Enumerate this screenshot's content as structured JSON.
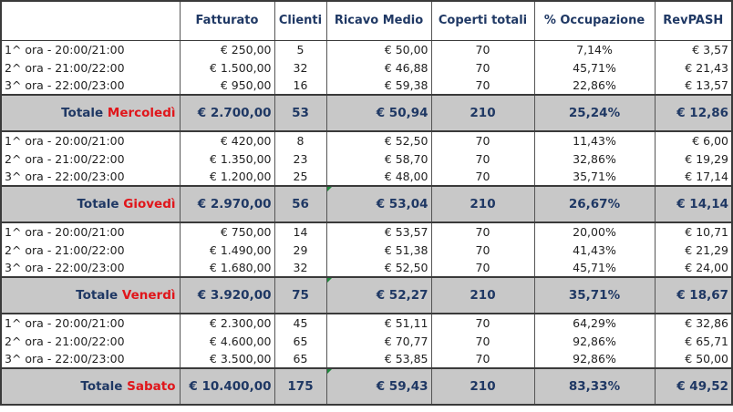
{
  "headers": {
    "col0": "",
    "fatturato": "Fatturato",
    "clienti": "Clienti",
    "ricavo_medio": "Ricavo Medio",
    "coperti_totali": "Coperti totali",
    "occupazione": "% Occupazione",
    "revpash": "RevPASH"
  },
  "groups": [
    {
      "rows": [
        {
          "label": "1^ ora - 20:00/21:00",
          "fatturato": "€ 250,00",
          "clienti": "5",
          "ricavo": "€ 50,00",
          "coperti": "70",
          "occ": "7,14%",
          "revpash": "€ 3,57"
        },
        {
          "label": "2^ ora - 21:00/22:00",
          "fatturato": "€ 1.500,00",
          "clienti": "32",
          "ricavo": "€ 46,88",
          "coperti": "70",
          "occ": "45,71%",
          "revpash": "€ 21,43"
        },
        {
          "label": "3^ ora - 22:00/23:00",
          "fatturato": "€ 950,00",
          "clienti": "16",
          "ricavo": "€ 59,38",
          "coperti": "70",
          "occ": "22,86%",
          "revpash": "€ 13,57"
        }
      ],
      "total": {
        "prefix": "Totale",
        "day": "Mercoledì",
        "fatturato": "€ 2.700,00",
        "clienti": "53",
        "ricavo": "€ 50,94",
        "coperti": "210",
        "occ": "25,24%",
        "revpash": "€ 12,86"
      }
    },
    {
      "rows": [
        {
          "label": "1^ ora - 20:00/21:00",
          "fatturato": "€ 420,00",
          "clienti": "8",
          "ricavo": "€ 52,50",
          "coperti": "70",
          "occ": "11,43%",
          "revpash": "€ 6,00"
        },
        {
          "label": "2^ ora - 21:00/22:00",
          "fatturato": "€ 1.350,00",
          "clienti": "23",
          "ricavo": "€ 58,70",
          "coperti": "70",
          "occ": "32,86%",
          "revpash": "€ 19,29"
        },
        {
          "label": "3^ ora - 22:00/23:00",
          "fatturato": "€ 1.200,00",
          "clienti": "25",
          "ricavo": "€ 48,00",
          "coperti": "70",
          "occ": "35,71%",
          "revpash": "€ 17,14"
        }
      ],
      "total": {
        "prefix": "Totale",
        "day": "Giovedì",
        "fatturato": "€ 2.970,00",
        "clienti": "56",
        "ricavo": "€ 53,04",
        "coperti": "210",
        "occ": "26,67%",
        "revpash": "€ 14,14"
      }
    },
    {
      "rows": [
        {
          "label": "1^ ora - 20:00/21:00",
          "fatturato": "€ 750,00",
          "clienti": "14",
          "ricavo": "€ 53,57",
          "coperti": "70",
          "occ": "20,00%",
          "revpash": "€ 10,71"
        },
        {
          "label": "2^ ora - 21:00/22:00",
          "fatturato": "€ 1.490,00",
          "clienti": "29",
          "ricavo": "€ 51,38",
          "coperti": "70",
          "occ": "41,43%",
          "revpash": "€ 21,29"
        },
        {
          "label": "3^ ora - 22:00/23:00",
          "fatturato": "€ 1.680,00",
          "clienti": "32",
          "ricavo": "€ 52,50",
          "coperti": "70",
          "occ": "45,71%",
          "revpash": "€ 24,00"
        }
      ],
      "total": {
        "prefix": "Totale",
        "day": "Venerdì",
        "fatturato": "€ 3.920,00",
        "clienti": "75",
        "ricavo": "€ 52,27",
        "coperti": "210",
        "occ": "35,71%",
        "revpash": "€ 18,67"
      }
    },
    {
      "rows": [
        {
          "label": "1^ ora - 20:00/21:00",
          "fatturato": "€ 2.300,00",
          "clienti": "45",
          "ricavo": "€ 51,11",
          "coperti": "70",
          "occ": "64,29%",
          "revpash": "€ 32,86"
        },
        {
          "label": "2^ ora - 21:00/22:00",
          "fatturato": "€ 4.600,00",
          "clienti": "65",
          "ricavo": "€ 70,77",
          "coperti": "70",
          "occ": "92,86%",
          "revpash": "€ 65,71"
        },
        {
          "label": "3^ ora - 22:00/23:00",
          "fatturato": "€ 3.500,00",
          "clienti": "65",
          "ricavo": "€ 53,85",
          "coperti": "70",
          "occ": "92,86%",
          "revpash": "€ 50,00"
        }
      ],
      "total": {
        "prefix": "Totale",
        "day": "Sabato",
        "fatturato": "€ 10.400,00",
        "clienti": "175",
        "ricavo": "€ 59,43",
        "coperti": "210",
        "occ": "83,33%",
        "revpash": "€ 49,52"
      }
    }
  ],
  "colors": {
    "header_text": "#1f3864",
    "day_name": "#e0161b",
    "total_row_bg": "#c8c8c8",
    "comment_marker": "#1e8a3c"
  }
}
